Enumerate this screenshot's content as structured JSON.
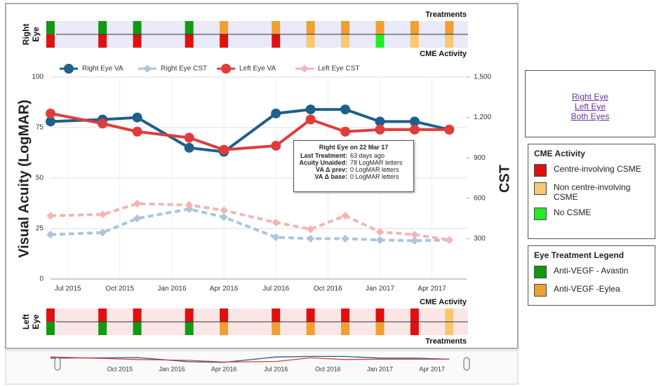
{
  "chart_data": {
    "type": "line",
    "x": [
      "2015-06",
      "2015-09",
      "2015-11",
      "2016-02",
      "2016-04",
      "2016-07",
      "2016-09",
      "2016-11",
      "2017-01",
      "2017-03",
      "2017-05"
    ],
    "xlim": [
      "2015-06",
      "2017-06"
    ],
    "xticks": [
      {
        "value": "2015-07",
        "label": "Jul 2015"
      },
      {
        "value": "2015-10",
        "label": "Oct 2015"
      },
      {
        "value": "2016-01",
        "label": "Jan 2016"
      },
      {
        "value": "2016-04",
        "label": "Apr 2016"
      },
      {
        "value": "2016-07",
        "label": "Jul 2016"
      },
      {
        "value": "2016-10",
        "label": "Oct 2016"
      },
      {
        "value": "2017-01",
        "label": "Jan 2017"
      },
      {
        "value": "2017-04",
        "label": "Apr 2017"
      }
    ],
    "ylim": [
      0,
      100
    ],
    "yticks": [
      0,
      25,
      50,
      75,
      100
    ],
    "y2lim": [
      0,
      1500
    ],
    "y2ticks": [
      300,
      600,
      900,
      {
        "value": 1200,
        "label": "1,200"
      },
      {
        "value": 1500,
        "label": "1,500"
      }
    ],
    "ylabel": "Visual Acuity (LogMAR)",
    "y2label": "CST",
    "grid": true,
    "series": [
      {
        "name": "Right Eye VA",
        "color": "#1f5f8b",
        "values": [
          78,
          79,
          80,
          65,
          63,
          82,
          84,
          84,
          78,
          78,
          74
        ]
      },
      {
        "name": "Right Eye CST",
        "color": "#a9c6de",
        "axis": "y2",
        "values": [
          330,
          345,
          450,
          520,
          460,
          310,
          300,
          300,
          290,
          285,
          290
        ]
      },
      {
        "name": "Left Eye VA",
        "color": "#e03c3c",
        "values": [
          82,
          77,
          73,
          70,
          64,
          66,
          79,
          73,
          74,
          74,
          74
        ]
      },
      {
        "name": "Left Eye CST",
        "color": "#f4b4b4",
        "axis": "y2",
        "values": [
          470,
          480,
          560,
          550,
          510,
          420,
          370,
          470,
          350,
          330,
          290
        ]
      }
    ],
    "tooltip": {
      "title": "Right Eye on 22 Mar 17",
      "rows": [
        [
          "Last Treatment:",
          "63 days ago"
        ],
        [
          "Acuity Unaided:",
          "78 LogMAR letters"
        ],
        [
          "VA Δ prev:",
          "0 LogMAR letters"
        ],
        [
          "VA Δ base:",
          "0 LogMAR letters"
        ]
      ]
    }
  },
  "strips": [
    {
      "label": [
        "Right",
        "Eye"
      ],
      "top_label": "Treatments",
      "bottom_label": "CME Activity",
      "background": "#e9e9f8",
      "top_colors": [
        "#119911",
        "#119911",
        "#119911",
        "#119911",
        "#f0a030",
        "#f0a030",
        "#f0a030",
        "#f0a030",
        "#f0a030",
        "#f0a030",
        "#f0a030"
      ],
      "bottom_colors": [
        "#e01010",
        "#e01010",
        "#e01010",
        "#e01010",
        "#e01010",
        "#e01010",
        "#f8c870",
        "#f8c870",
        "#22ee22",
        "#f8c870",
        "#f8c870"
      ]
    },
    {
      "label": [
        "Left",
        "Eye"
      ],
      "top_label": "CME Activity",
      "bottom_label": "Treatments",
      "background": "#fbe6e6",
      "top_colors": [
        "#e01010",
        "#e01010",
        "#e01010",
        "#e01010",
        "#e01010",
        "#e01010",
        "#e01010",
        "#e01010",
        "#e01010",
        "#e01010",
        "#f8c870"
      ],
      "bottom_colors": [
        "#119911",
        "#119911",
        "#119911",
        "#119911",
        "#f0a030",
        "#f0a030",
        "#f0a030",
        "#f0a030",
        "#f0a030",
        "#e01010",
        "#f8c870"
      ]
    }
  ],
  "links": [
    "Right Eye",
    "Left Eye",
    "Both Eyes"
  ],
  "cme_legend": {
    "title": "CME Activity",
    "items": [
      {
        "label": "Centre-involving CSME",
        "color": "#e01010"
      },
      {
        "label": "Non centre-involving CSME",
        "color": "#f8c870"
      },
      {
        "label": "No CSME",
        "color": "#22ee22"
      }
    ]
  },
  "treatment_legend": {
    "title": "Eye Treatment Legend",
    "items": [
      {
        "label": "Anti-VEGF - Avastin",
        "color": "#119911"
      },
      {
        "label": "Anti-VEGF -Eylea",
        "color": "#f0a030"
      }
    ]
  }
}
